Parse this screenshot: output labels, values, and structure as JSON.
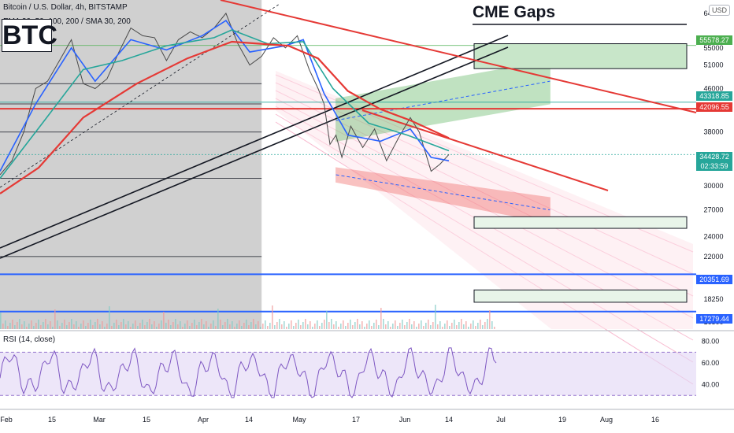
{
  "header": {
    "ticker": "Bitcoin / U.S. Dollar, 4h, BITSTAMP",
    "indicators": "EMA 20, 50, 100, 200 / SMA 30, 200",
    "badge": "BTC",
    "currency": "USD"
  },
  "annotations": {
    "cme_title": "CME Gaps"
  },
  "price_labels": {
    "gap_top": "55578.27",
    "level_a": "43318.85",
    "level_b": "42096.55",
    "last_price": "34428.72",
    "countdown": "02:33:59",
    "level_c": "20351.69",
    "level_d": "17279.44"
  },
  "rsi": {
    "title": "RSI (14, close)"
  },
  "colors": {
    "background": "#ffffff",
    "shaded_region": "#c8c8c8",
    "ema_fast": "#2962ff",
    "ema_mid": "#131722",
    "ema_teal": "#26a69a",
    "ema_slow": "#e53935",
    "channel_green": "#4caf50",
    "channel_red": "#ef5350",
    "hline_blue": "#2962ff",
    "rsi_line": "#7e57c2",
    "rsi_band": "#e1d5f5"
  },
  "chart_data": {
    "type": "line",
    "title": "Bitcoin / U.S. Dollar, 4h, BITSTAMP",
    "y_scale": "log",
    "ylim": [
      16000,
      66000
    ],
    "y_ticks": [
      64000,
      55000,
      51000,
      46000,
      42000,
      38000,
      34000,
      30000,
      27000,
      24000,
      22000,
      20000,
      18250,
      16500
    ],
    "x_ticks": [
      "Feb",
      "15",
      "Mar",
      "15",
      "Apr",
      "14",
      "May",
      "17",
      "Jun",
      "14",
      "Jul",
      "19",
      "Aug",
      "16"
    ],
    "grid": false,
    "price_series": [
      {
        "t": "2021-01-28",
        "v": 31500
      },
      {
        "t": "2021-02-01",
        "v": 33500
      },
      {
        "t": "2021-02-05",
        "v": 38000
      },
      {
        "t": "2021-02-09",
        "v": 46000
      },
      {
        "t": "2021-02-13",
        "v": 47500
      },
      {
        "t": "2021-02-17",
        "v": 52000
      },
      {
        "t": "2021-02-21",
        "v": 57000
      },
      {
        "t": "2021-02-25",
        "v": 47000
      },
      {
        "t": "2021-03-01",
        "v": 46000
      },
      {
        "t": "2021-03-05",
        "v": 48000
      },
      {
        "t": "2021-03-09",
        "v": 54000
      },
      {
        "t": "2021-03-13",
        "v": 60000
      },
      {
        "t": "2021-03-17",
        "v": 58000
      },
      {
        "t": "2021-03-21",
        "v": 57500
      },
      {
        "t": "2021-03-25",
        "v": 52000
      },
      {
        "t": "2021-03-29",
        "v": 57000
      },
      {
        "t": "2021-04-02",
        "v": 59000
      },
      {
        "t": "2021-04-06",
        "v": 57500
      },
      {
        "t": "2021-04-10",
        "v": 60000
      },
      {
        "t": "2021-04-14",
        "v": 64000
      },
      {
        "t": "2021-04-18",
        "v": 56000
      },
      {
        "t": "2021-04-22",
        "v": 51000
      },
      {
        "t": "2021-04-26",
        "v": 53000
      },
      {
        "t": "2021-04-30",
        "v": 57500
      },
      {
        "t": "2021-05-04",
        "v": 55000
      },
      {
        "t": "2021-05-08",
        "v": 58000
      },
      {
        "t": "2021-05-12",
        "v": 50000
      },
      {
        "t": "2021-05-15",
        "v": 46000
      },
      {
        "t": "2021-05-17",
        "v": 43000
      },
      {
        "t": "2021-05-19",
        "v": 36000
      },
      {
        "t": "2021-05-21",
        "v": 37500
      },
      {
        "t": "2021-05-23",
        "v": 34000
      },
      {
        "t": "2021-05-26",
        "v": 39000
      },
      {
        "t": "2021-05-30",
        "v": 35500
      },
      {
        "t": "2021-06-03",
        "v": 38500
      },
      {
        "t": "2021-06-07",
        "v": 33500
      },
      {
        "t": "2021-06-11",
        "v": 37000
      },
      {
        "t": "2021-06-15",
        "v": 40500
      },
      {
        "t": "2021-06-18",
        "v": 38000
      },
      {
        "t": "2021-06-22",
        "v": 32000
      },
      {
        "t": "2021-06-25",
        "v": 33000
      },
      {
        "t": "2021-06-28",
        "v": 34428.72
      }
    ],
    "ema_series": [
      {
        "name": "EMA fast",
        "color": "#2962ff",
        "points": [
          {
            "t": "2021-01-28",
            "v": 32000
          },
          {
            "t": "2021-02-09",
            "v": 43000
          },
          {
            "t": "2021-02-21",
            "v": 55000
          },
          {
            "t": "2021-03-01",
            "v": 47500
          },
          {
            "t": "2021-03-13",
            "v": 57000
          },
          {
            "t": "2021-03-25",
            "v": 54500
          },
          {
            "t": "2021-04-06",
            "v": 58000
          },
          {
            "t": "2021-04-14",
            "v": 62000
          },
          {
            "t": "2021-04-22",
            "v": 54000
          },
          {
            "t": "2021-05-04",
            "v": 55500
          },
          {
            "t": "2021-05-10",
            "v": 57000
          },
          {
            "t": "2021-05-17",
            "v": 45000
          },
          {
            "t": "2021-05-25",
            "v": 37500
          },
          {
            "t": "2021-06-05",
            "v": 36500
          },
          {
            "t": "2021-06-15",
            "v": 38500
          },
          {
            "t": "2021-06-22",
            "v": 34000
          },
          {
            "t": "2021-06-28",
            "v": 33500
          }
        ]
      },
      {
        "name": "EMA teal",
        "color": "#26a69a",
        "points": [
          {
            "t": "2021-01-28",
            "v": 31000
          },
          {
            "t": "2021-02-12",
            "v": 40000
          },
          {
            "t": "2021-02-25",
            "v": 50000
          },
          {
            "t": "2021-03-10",
            "v": 52000
          },
          {
            "t": "2021-03-25",
            "v": 55500
          },
          {
            "t": "2021-04-10",
            "v": 57500
          },
          {
            "t": "2021-04-16",
            "v": 59500
          },
          {
            "t": "2021-04-28",
            "v": 56000
          },
          {
            "t": "2021-05-10",
            "v": 56500
          },
          {
            "t": "2021-05-20",
            "v": 46000
          },
          {
            "t": "2021-06-01",
            "v": 39500
          },
          {
            "t": "2021-06-14",
            "v": 37500
          },
          {
            "t": "2021-06-28",
            "v": 35000
          }
        ]
      },
      {
        "name": "EMA slow",
        "color": "#e53935",
        "points": [
          {
            "t": "2021-01-28",
            "v": 29000
          },
          {
            "t": "2021-02-10",
            "v": 32500
          },
          {
            "t": "2021-02-25",
            "v": 40500
          },
          {
            "t": "2021-03-15",
            "v": 47000
          },
          {
            "t": "2021-04-01",
            "v": 52500
          },
          {
            "t": "2021-04-16",
            "v": 56500
          },
          {
            "t": "2021-05-05",
            "v": 55500
          },
          {
            "t": "2021-05-15",
            "v": 52500
          },
          {
            "t": "2021-05-25",
            "v": 45500
          },
          {
            "t": "2021-06-05",
            "v": 42000
          },
          {
            "t": "2021-06-15",
            "v": 40000
          },
          {
            "t": "2021-06-28",
            "v": 37000
          }
        ]
      }
    ],
    "horizontal_levels": [
      {
        "value": 55578.27,
        "color": "#4caf50"
      },
      {
        "value": 43318.85,
        "color": "#26a69a"
      },
      {
        "value": 42096.55,
        "color": "#e53935"
      },
      {
        "value": 34428.72,
        "color": "#26a69a"
      },
      {
        "value": 20351.69,
        "color": "#2962ff"
      },
      {
        "value": 17279.44,
        "color": "#2962ff"
      }
    ],
    "cme_gaps": [
      {
        "from": 50200,
        "to": 56000
      },
      {
        "from": 24900,
        "to": 26200
      },
      {
        "from": 18000,
        "to": 19000
      }
    ],
    "rsi": {
      "ylim": [
        20,
        90
      ],
      "y_ticks": [
        80,
        60,
        40
      ],
      "band": [
        30,
        70
      ],
      "last": 60
    }
  }
}
